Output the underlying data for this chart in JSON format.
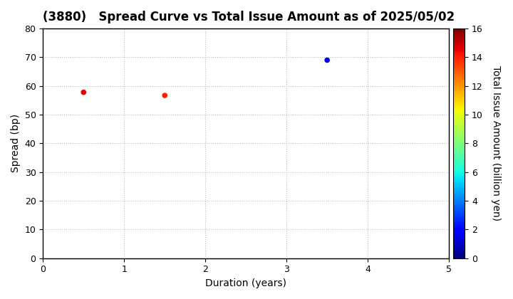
{
  "title": "(3880)   Spread Curve vs Total Issue Amount as of 2025/05/02",
  "xlabel": "Duration (years)",
  "ylabel": "Spread (bp)",
  "colorbar_label": "Total Issue Amount (billion yen)",
  "xlim": [
    0,
    5
  ],
  "ylim": [
    0,
    80
  ],
  "xticks": [
    0,
    1,
    2,
    3,
    4,
    5
  ],
  "yticks": [
    0,
    10,
    20,
    30,
    40,
    50,
    60,
    70,
    80
  ],
  "colorbar_min": 0,
  "colorbar_max": 16,
  "colorbar_ticks": [
    0,
    2,
    4,
    6,
    8,
    10,
    12,
    14,
    16
  ],
  "points": [
    {
      "duration": 0.5,
      "spread": 57.8,
      "amount": 14.5
    },
    {
      "duration": 1.5,
      "spread": 56.7,
      "amount": 14.0
    },
    {
      "duration": 3.5,
      "spread": 69.0,
      "amount": 1.5
    }
  ],
  "marker_size": 20,
  "background_color": "#ffffff",
  "grid_color": "#bbbbbb",
  "title_fontsize": 12,
  "axis_label_fontsize": 10,
  "tick_fontsize": 9,
  "cbar_tick_fontsize": 9,
  "figsize": [
    7.2,
    4.2
  ],
  "dpi": 100
}
